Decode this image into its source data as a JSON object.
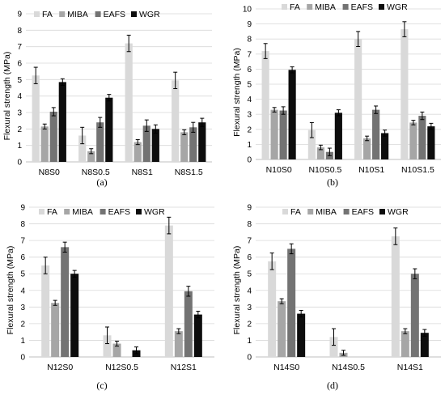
{
  "colors": {
    "FA": "#d9d9d9",
    "MIBA": "#a6a6a6",
    "EAFS": "#737373",
    "WGR": "#0d0d0d",
    "grid": "#d9d9d9",
    "axis": "#bfbfbf"
  },
  "chart_data": [
    {
      "type": "bar",
      "panel_label": "(a)",
      "ylabel": "Flexural strength (MPa)",
      "ylim": [
        0,
        9
      ],
      "yticks": [
        0,
        1,
        2,
        3,
        4,
        5,
        6,
        7,
        8,
        9
      ],
      "categories": [
        "N8S0",
        "N8S0.5",
        "N8S1",
        "N8S1.5"
      ],
      "legend_position": "top-left",
      "grid": true,
      "series": [
        {
          "name": "FA",
          "values": [
            5.25,
            1.6,
            7.2,
            4.95
          ],
          "errors": [
            0.5,
            0.5,
            0.5,
            0.5
          ]
        },
        {
          "name": "MIBA",
          "values": [
            2.15,
            null,
            1.2,
            1.8
          ],
          "errors": [
            0.15,
            null,
            0.15,
            0.15
          ]
        },
        {
          "name": "EAFS",
          "values": [
            3.05,
            2.4,
            2.2,
            2.1
          ],
          "errors": [
            0.25,
            0.3,
            0.35,
            0.3
          ]
        },
        {
          "name": "WGR",
          "values": [
            4.85,
            3.9,
            2.0,
            2.4
          ],
          "errors": [
            0.2,
            0.2,
            0.25,
            0.25
          ]
        }
      ],
      "extra_bars": [
        {
          "series": "MIBA",
          "category": "N8S0.5",
          "value": 0.65,
          "error": 0.15
        }
      ]
    },
    {
      "type": "bar",
      "panel_label": "(b)",
      "ylabel": "Flexural strength (MPa)",
      "ylim": [
        0,
        10
      ],
      "yticks": [
        0,
        1,
        2,
        3,
        4,
        5,
        6,
        7,
        8,
        9,
        10
      ],
      "categories": [
        "N10S0",
        "N10S0.5",
        "N10S1",
        "N10S1.5"
      ],
      "legend_position": "top-left",
      "grid": true,
      "series": [
        {
          "name": "FA",
          "values": [
            7.2,
            1.95,
            8.0,
            8.65
          ],
          "errors": [
            0.5,
            0.5,
            0.5,
            0.5
          ]
        },
        {
          "name": "MIBA",
          "values": [
            3.3,
            0.8,
            1.4,
            2.45
          ],
          "errors": [
            0.15,
            0.15,
            0.15,
            0.15
          ]
        },
        {
          "name": "EAFS",
          "values": [
            3.25,
            0.5,
            3.3,
            2.9
          ],
          "errors": [
            0.25,
            0.25,
            0.25,
            0.25
          ]
        },
        {
          "name": "WGR",
          "values": [
            5.95,
            3.1,
            1.75,
            2.2
          ],
          "errors": [
            0.2,
            0.2,
            0.2,
            0.2
          ]
        }
      ]
    },
    {
      "type": "bar",
      "panel_label": "(c)",
      "ylabel": "Flexural strength (MPa)",
      "ylim": [
        0,
        9
      ],
      "yticks": [
        0,
        1,
        2,
        3,
        4,
        5,
        6,
        7,
        8,
        9
      ],
      "categories": [
        "N12S0",
        "N12S0.5",
        "N12S1"
      ],
      "legend_position": "top-left",
      "grid": true,
      "series": [
        {
          "name": "FA",
          "values": [
            5.5,
            1.3,
            7.9
          ],
          "errors": [
            0.5,
            0.5,
            0.5
          ]
        },
        {
          "name": "MIBA",
          "values": [
            3.25,
            0.8,
            1.55
          ],
          "errors": [
            0.15,
            0.15,
            0.15
          ]
        },
        {
          "name": "EAFS",
          "values": [
            6.6,
            null,
            3.95
          ],
          "errors": [
            0.3,
            null,
            0.3
          ]
        },
        {
          "name": "WGR",
          "values": [
            5.0,
            0.4,
            2.55
          ],
          "errors": [
            0.2,
            0.2,
            0.2
          ]
        }
      ]
    },
    {
      "type": "bar",
      "panel_label": "(d)",
      "ylabel": "Flexural strength (MPa)",
      "ylim": [
        0,
        9
      ],
      "yticks": [
        0,
        1,
        2,
        3,
        4,
        5,
        6,
        7,
        8,
        9
      ],
      "categories": [
        "N14S0",
        "N14S0.5",
        "N14S1"
      ],
      "legend_position": "top-left",
      "grid": true,
      "series": [
        {
          "name": "FA",
          "values": [
            5.75,
            1.2,
            7.25
          ],
          "errors": [
            0.5,
            0.5,
            0.5
          ]
        },
        {
          "name": "MIBA",
          "values": [
            3.35,
            0.25,
            1.55
          ],
          "errors": [
            0.15,
            0.15,
            0.15
          ]
        },
        {
          "name": "EAFS",
          "values": [
            6.5,
            null,
            5.0
          ],
          "errors": [
            0.3,
            null,
            0.3
          ]
        },
        {
          "name": "WGR",
          "values": [
            2.6,
            null,
            1.45
          ],
          "errors": [
            0.2,
            null,
            0.2
          ]
        }
      ]
    }
  ]
}
